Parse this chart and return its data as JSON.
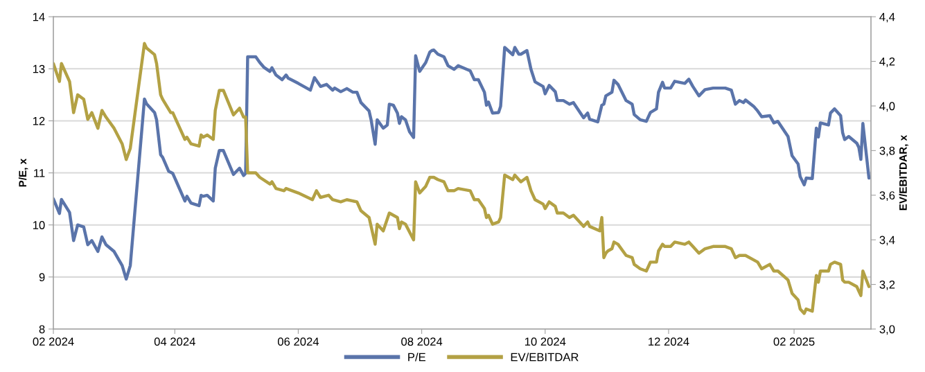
{
  "chart_data": {
    "type": "line",
    "xlabel": null,
    "ylabel": "P/E, x",
    "y2label": "EV/EBITDAR, x",
    "xlim": [
      "2024-02-01",
      "2025-03-11"
    ],
    "xticks": [
      {
        "value": "2024-02-01",
        "label": "02 2024"
      },
      {
        "value": "2024-04-01",
        "label": "04 2024"
      },
      {
        "value": "2024-06-01",
        "label": "06 2024"
      },
      {
        "value": "2024-08-01",
        "label": "08 2024"
      },
      {
        "value": "2024-10-01",
        "label": "10 2024"
      },
      {
        "value": "2024-12-01",
        "label": "12 2024"
      },
      {
        "value": "2025-02-01",
        "label": "02 2025"
      }
    ],
    "ylim": [
      8,
      14
    ],
    "yticks": [
      8,
      9,
      10,
      11,
      12,
      13,
      14
    ],
    "y2lim": [
      3.0,
      4.4
    ],
    "y2ticks": [
      {
        "value": 3.0,
        "label": "3,0"
      },
      {
        "value": 3.2,
        "label": "3,2"
      },
      {
        "value": 3.4,
        "label": "3,4"
      },
      {
        "value": 3.6,
        "label": "3,6"
      },
      {
        "value": 3.8,
        "label": "3,8"
      },
      {
        "value": 4.0,
        "label": "4,0"
      },
      {
        "value": 4.2,
        "label": "4,2"
      },
      {
        "value": 4.4,
        "label": "4,4"
      }
    ],
    "grid": "y",
    "legend": "bottom",
    "line_style": "solid",
    "marker": "none",
    "series": [
      {
        "name": "P/E",
        "color": "#5a74aa",
        "axis": "y",
        "x": [
          "2024-02-01",
          "2024-02-04",
          "2024-02-05",
          "2024-02-09",
          "2024-02-11",
          "2024-02-13",
          "2024-02-16",
          "2024-02-18",
          "2024-02-20",
          "2024-02-23",
          "2024-02-25",
          "2024-02-27",
          "2024-03-02",
          "2024-03-06",
          "2024-03-08",
          "2024-03-10",
          "2024-03-17",
          "2024-03-18",
          "2024-03-22",
          "2024-03-23",
          "2024-03-25",
          "2024-03-26",
          "2024-03-29",
          "2024-03-31",
          "2024-04-06",
          "2024-04-07",
          "2024-04-09",
          "2024-04-13",
          "2024-04-14",
          "2024-04-15",
          "2024-04-17",
          "2024-04-20",
          "2024-04-21",
          "2024-04-23",
          "2024-04-25",
          "2024-04-30",
          "2024-05-03",
          "2024-05-05",
          "2024-05-06",
          "2024-05-07",
          "2024-05-11",
          "2024-05-13",
          "2024-05-15",
          "2024-05-18",
          "2024-05-19",
          "2024-05-21",
          "2024-05-24",
          "2024-05-26",
          "2024-05-27",
          "2024-06-01",
          "2024-06-07",
          "2024-06-09",
          "2024-06-12",
          "2024-06-15",
          "2024-06-18",
          "2024-06-19",
          "2024-06-22",
          "2024-06-25",
          "2024-06-28",
          "2024-06-30",
          "2024-07-02",
          "2024-07-06",
          "2024-07-07",
          "2024-07-09",
          "2024-07-10",
          "2024-07-13",
          "2024-07-15",
          "2024-07-16",
          "2024-07-18",
          "2024-07-20",
          "2024-07-21",
          "2024-07-22",
          "2024-07-24",
          "2024-07-26",
          "2024-07-28",
          "2024-07-29",
          "2024-07-31",
          "2024-08-03",
          "2024-08-05",
          "2024-08-06",
          "2024-08-07",
          "2024-08-09",
          "2024-08-12",
          "2024-08-14",
          "2024-08-17",
          "2024-08-19",
          "2024-08-25",
          "2024-08-27",
          "2024-08-29",
          "2024-09-01",
          "2024-09-02",
          "2024-09-03",
          "2024-09-05",
          "2024-09-08",
          "2024-09-09",
          "2024-09-11",
          "2024-09-15",
          "2024-09-16",
          "2024-09-18",
          "2024-09-19",
          "2024-09-22",
          "2024-09-24",
          "2024-09-26",
          "2024-09-30",
          "2024-10-01",
          "2024-10-03",
          "2024-10-06",
          "2024-10-07",
          "2024-10-10",
          "2024-10-13",
          "2024-10-15",
          "2024-10-20",
          "2024-10-22",
          "2024-10-23",
          "2024-10-27",
          "2024-10-29",
          "2024-10-30",
          "2024-10-31",
          "2024-11-03",
          "2024-11-04",
          "2024-11-06",
          "2024-11-10",
          "2024-11-13",
          "2024-11-14",
          "2024-11-17",
          "2024-11-20",
          "2024-11-22",
          "2024-11-25",
          "2024-11-26",
          "2024-11-28",
          "2024-11-29",
          "2024-12-02",
          "2024-12-04",
          "2024-12-09",
          "2024-12-11",
          "2024-12-13",
          "2024-12-16",
          "2024-12-19",
          "2024-12-23",
          "2024-12-29",
          "2025-01-01",
          "2025-01-03",
          "2025-01-05",
          "2025-01-07",
          "2025-01-08",
          "2025-01-12",
          "2025-01-14",
          "2025-01-16",
          "2025-01-20",
          "2025-01-22",
          "2025-01-24",
          "2025-01-29",
          "2025-01-31",
          "2025-02-03",
          "2025-02-04",
          "2025-02-06",
          "2025-02-07",
          "2025-02-10",
          "2025-02-12",
          "2025-02-13",
          "2025-02-14",
          "2025-02-18",
          "2025-02-19",
          "2025-02-21",
          "2025-02-24",
          "2025-02-25",
          "2025-02-26",
          "2025-02-28",
          "2025-03-04",
          "2025-03-05",
          "2025-03-06",
          "2025-03-07",
          "2025-03-10"
        ],
        "values": [
          10.5,
          10.22,
          10.49,
          10.24,
          9.7,
          10.0,
          9.96,
          9.62,
          9.7,
          9.49,
          9.77,
          9.62,
          9.49,
          9.22,
          8.96,
          9.22,
          12.42,
          12.33,
          12.16,
          12.02,
          11.35,
          11.3,
          11.03,
          10.99,
          10.46,
          10.55,
          10.42,
          10.37,
          10.57,
          10.55,
          10.57,
          10.46,
          11.09,
          11.43,
          11.43,
          10.97,
          11.09,
          10.95,
          10.99,
          13.23,
          13.23,
          13.12,
          13.03,
          12.95,
          13.02,
          12.88,
          12.79,
          12.88,
          12.82,
          12.72,
          12.59,
          12.83,
          12.66,
          12.7,
          12.59,
          12.63,
          12.56,
          12.62,
          12.55,
          12.55,
          12.35,
          12.19,
          12.02,
          11.55,
          12.02,
          11.86,
          11.92,
          12.32,
          12.3,
          12.15,
          11.95,
          12.08,
          12.02,
          11.79,
          11.68,
          13.25,
          12.95,
          13.12,
          13.32,
          13.35,
          13.36,
          13.28,
          13.23,
          13.06,
          12.99,
          13.06,
          12.96,
          12.79,
          12.79,
          12.55,
          12.3,
          12.36,
          12.15,
          12.16,
          12.28,
          13.41,
          13.27,
          13.41,
          13.28,
          13.28,
          13.35,
          12.99,
          12.75,
          12.66,
          12.52,
          12.68,
          12.56,
          12.39,
          12.39,
          12.32,
          12.35,
          12.06,
          12.15,
          12.03,
          11.98,
          12.3,
          12.32,
          12.48,
          12.55,
          12.78,
          12.7,
          12.39,
          12.32,
          12.12,
          12.02,
          11.99,
          12.16,
          12.23,
          12.55,
          12.74,
          12.63,
          12.63,
          12.76,
          12.72,
          12.8,
          12.66,
          12.48,
          12.6,
          12.63,
          12.63,
          12.59,
          12.32,
          12.39,
          12.35,
          12.4,
          12.28,
          12.19,
          12.08,
          12.1,
          11.96,
          11.99,
          11.7,
          11.33,
          11.17,
          10.93,
          10.77,
          10.9,
          10.89,
          11.86,
          11.69,
          11.96,
          11.92,
          12.15,
          12.23,
          12.1,
          11.77,
          11.64,
          11.7,
          11.57,
          11.49,
          11.26,
          11.95,
          10.9
        ]
      },
      {
        "name": "EV/EBITDAR",
        "color": "#b3a144",
        "axis": "y2",
        "x": [
          "2024-02-01",
          "2024-02-04",
          "2024-02-05",
          "2024-02-09",
          "2024-02-11",
          "2024-02-13",
          "2024-02-16",
          "2024-02-18",
          "2024-02-20",
          "2024-02-23",
          "2024-02-25",
          "2024-02-27",
          "2024-03-02",
          "2024-03-06",
          "2024-03-08",
          "2024-03-10",
          "2024-03-17",
          "2024-03-18",
          "2024-03-22",
          "2024-03-23",
          "2024-03-25",
          "2024-03-26",
          "2024-03-30",
          "2024-03-31",
          "2024-04-06",
          "2024-04-07",
          "2024-04-09",
          "2024-04-13",
          "2024-04-14",
          "2024-04-15",
          "2024-04-17",
          "2024-04-20",
          "2024-04-21",
          "2024-04-23",
          "2024-04-25",
          "2024-04-30",
          "2024-05-03",
          "2024-05-05",
          "2024-05-06",
          "2024-05-07",
          "2024-05-11",
          "2024-05-13",
          "2024-05-18",
          "2024-05-19",
          "2024-05-21",
          "2024-05-25",
          "2024-05-26",
          "2024-06-01",
          "2024-06-08",
          "2024-06-10",
          "2024-06-12",
          "2024-06-16",
          "2024-06-18",
          "2024-06-22",
          "2024-06-25",
          "2024-06-30",
          "2024-07-02",
          "2024-07-06",
          "2024-07-07",
          "2024-07-09",
          "2024-07-10",
          "2024-07-13",
          "2024-07-16",
          "2024-07-20",
          "2024-07-21",
          "2024-07-22",
          "2024-07-24",
          "2024-07-28",
          "2024-07-29",
          "2024-07-31",
          "2024-08-03",
          "2024-08-05",
          "2024-08-07",
          "2024-08-09",
          "2024-08-12",
          "2024-08-14",
          "2024-08-17",
          "2024-08-19",
          "2024-08-25",
          "2024-08-27",
          "2024-08-29",
          "2024-09-01",
          "2024-09-02",
          "2024-09-03",
          "2024-09-05",
          "2024-09-08",
          "2024-09-09",
          "2024-09-11",
          "2024-09-15",
          "2024-09-16",
          "2024-09-19",
          "2024-09-22",
          "2024-09-24",
          "2024-09-26",
          "2024-09-30",
          "2024-10-01",
          "2024-10-03",
          "2024-10-06",
          "2024-10-07",
          "2024-10-10",
          "2024-10-13",
          "2024-10-15",
          "2024-10-20",
          "2024-10-22",
          "2024-10-23",
          "2024-10-28",
          "2024-10-29",
          "2024-10-30",
          "2024-10-31",
          "2024-11-01",
          "2024-11-03",
          "2024-11-04",
          "2024-11-06",
          "2024-11-10",
          "2024-11-13",
          "2024-11-14",
          "2024-11-17",
          "2024-11-20",
          "2024-11-22",
          "2024-11-25",
          "2024-11-26",
          "2024-11-28",
          "2024-11-29",
          "2024-12-02",
          "2024-12-04",
          "2024-12-09",
          "2024-12-11",
          "2024-12-13",
          "2024-12-16",
          "2024-12-19",
          "2024-12-23",
          "2024-12-29",
          "2025-01-01",
          "2025-01-03",
          "2025-01-05",
          "2025-01-08",
          "2025-01-12",
          "2025-01-14",
          "2025-01-16",
          "2025-01-20",
          "2025-01-22",
          "2025-01-24",
          "2025-01-29",
          "2025-01-31",
          "2025-02-03",
          "2025-02-04",
          "2025-02-06",
          "2025-02-07",
          "2025-02-10",
          "2025-02-12",
          "2025-02-13",
          "2025-02-14",
          "2025-02-18",
          "2025-02-19",
          "2025-02-21",
          "2025-02-24",
          "2025-02-25",
          "2025-02-26",
          "2025-02-28",
          "2025-03-04",
          "2025-03-05",
          "2025-03-06",
          "2025-03-07",
          "2025-03-10"
        ],
        "values": [
          4.19,
          4.11,
          4.19,
          4.11,
          3.97,
          4.05,
          4.03,
          3.94,
          3.97,
          3.9,
          3.98,
          3.95,
          3.9,
          3.83,
          3.76,
          3.81,
          4.28,
          4.26,
          4.23,
          4.19,
          4.05,
          4.03,
          3.97,
          3.97,
          3.85,
          3.86,
          3.83,
          3.82,
          3.87,
          3.86,
          3.87,
          3.85,
          3.98,
          4.07,
          4.07,
          3.96,
          3.99,
          3.95,
          3.95,
          3.7,
          3.7,
          3.68,
          3.65,
          3.66,
          3.63,
          3.62,
          3.63,
          3.61,
          3.58,
          3.62,
          3.59,
          3.6,
          3.58,
          3.57,
          3.58,
          3.57,
          3.53,
          3.5,
          3.46,
          3.38,
          3.47,
          3.44,
          3.52,
          3.5,
          3.45,
          3.48,
          3.47,
          3.4,
          3.66,
          3.61,
          3.64,
          3.68,
          3.68,
          3.67,
          3.66,
          3.62,
          3.62,
          3.63,
          3.62,
          3.58,
          3.58,
          3.54,
          3.5,
          3.51,
          3.47,
          3.48,
          3.5,
          3.69,
          3.67,
          3.69,
          3.66,
          3.68,
          3.62,
          3.58,
          3.56,
          3.54,
          3.57,
          3.55,
          3.52,
          3.52,
          3.5,
          3.51,
          3.46,
          3.48,
          3.46,
          3.44,
          3.5,
          3.32,
          3.34,
          3.35,
          3.36,
          3.39,
          3.38,
          3.33,
          3.32,
          3.29,
          3.27,
          3.26,
          3.3,
          3.3,
          3.35,
          3.38,
          3.37,
          3.37,
          3.39,
          3.38,
          3.39,
          3.37,
          3.34,
          3.36,
          3.37,
          3.37,
          3.36,
          3.32,
          3.33,
          3.33,
          3.31,
          3.3,
          3.27,
          3.29,
          3.26,
          3.26,
          3.22,
          3.16,
          3.13,
          3.09,
          3.07,
          3.09,
          3.08,
          3.24,
          3.21,
          3.26,
          3.26,
          3.29,
          3.3,
          3.29,
          3.22,
          3.21,
          3.21,
          3.19,
          3.17,
          3.15,
          3.26,
          3.19
        ]
      }
    ]
  }
}
